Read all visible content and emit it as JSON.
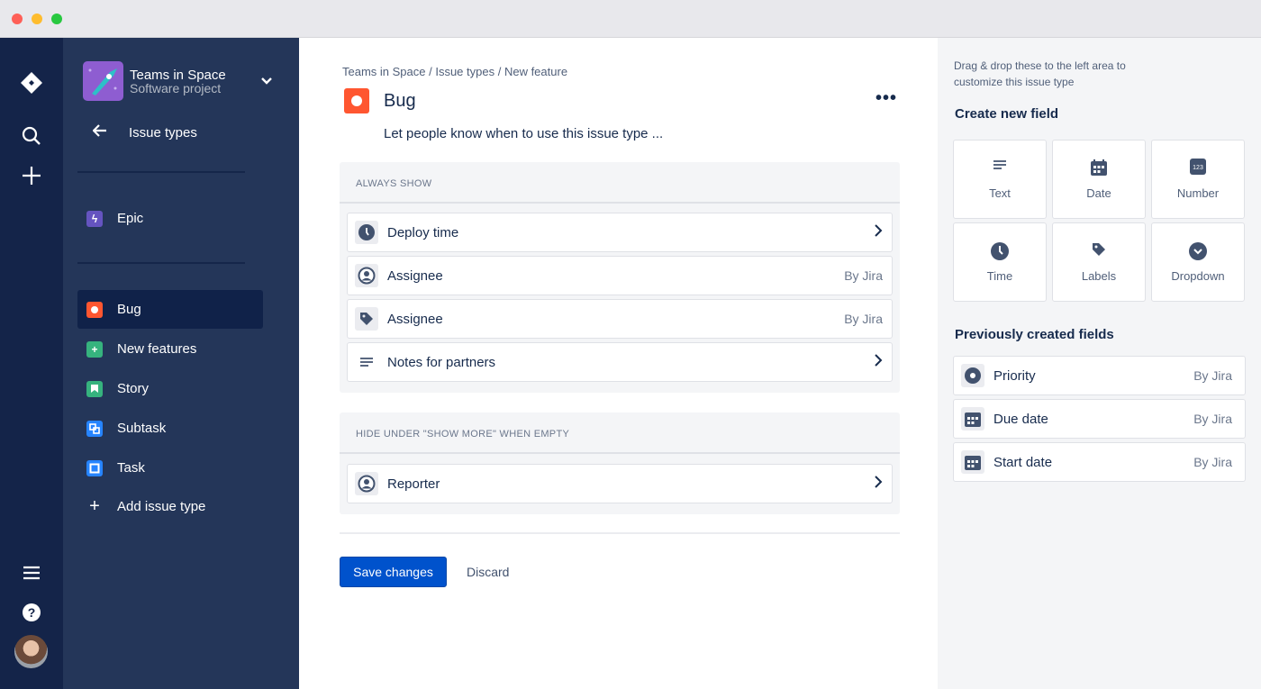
{
  "project": {
    "name": "Teams in Space",
    "type": "Software project"
  },
  "sidebar": {
    "back_label": "Issue types",
    "items": [
      {
        "label": "Epic",
        "color": "#6554c0",
        "icon": "lightning-icon"
      },
      {
        "label": "Bug",
        "color": "#ff5630",
        "icon": "bug-icon",
        "selected": true
      },
      {
        "label": "New features",
        "color": "#36b37e",
        "icon": "plus-icon"
      },
      {
        "label": "Story",
        "color": "#36b37e",
        "icon": "bookmark-icon"
      },
      {
        "label": "Subtask",
        "color": "#2684ff",
        "icon": "subtask-icon"
      },
      {
        "label": "Task",
        "color": "#2684ff",
        "icon": "task-icon"
      }
    ],
    "add_label": "Add issue type"
  },
  "breadcrumb": [
    "Teams in Space",
    "Issue types",
    "New feature"
  ],
  "issue": {
    "title": "Bug",
    "description": "Let people know when to use this issue type ...",
    "color": "#ff5630"
  },
  "always_show": {
    "heading": "ALWAYS SHOW",
    "rows": [
      {
        "label": "Deploy time",
        "icon": "clock-icon",
        "meta": ""
      },
      {
        "label": "Assignee",
        "icon": "user-icon",
        "meta": "By Jira"
      },
      {
        "label": "Assignee",
        "icon": "tag-icon",
        "meta": "By Jira"
      },
      {
        "label": "Notes for partners",
        "icon": "text-icon",
        "meta": ""
      }
    ]
  },
  "hide_section": {
    "heading": "HIDE UNDER \"SHOW MORE\" WHEN EMPTY",
    "rows": [
      {
        "label": "Reporter",
        "icon": "user-icon",
        "meta": ""
      }
    ]
  },
  "actions": {
    "save": "Save changes",
    "discard": "Discard"
  },
  "panel": {
    "hint": "Drag & drop these to the left area to customize this issue type",
    "create_heading": "Create new field",
    "fields": [
      "Text",
      "Date",
      "Number",
      "Time",
      "Labels",
      "Dropdown"
    ],
    "prev_heading": "Previously created fields",
    "prev": [
      {
        "label": "Priority",
        "meta": "By Jira"
      },
      {
        "label": "Due date",
        "meta": "By Jira"
      },
      {
        "label": "Start date",
        "meta": "By Jira"
      }
    ]
  },
  "colors": {
    "accent": "#0052cc",
    "rail": "#142449",
    "sidebar": "#243659"
  }
}
